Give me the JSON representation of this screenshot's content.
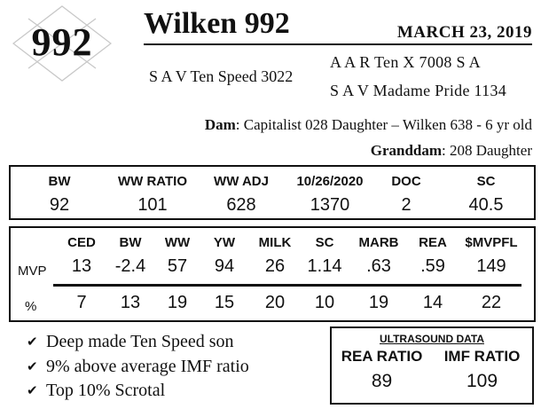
{
  "lot": {
    "number": "992",
    "emblem_icon": "diamond-x-emblem"
  },
  "header": {
    "name": "Wilken 992",
    "date": "MARCH  23, 2019",
    "sire": "S A V Ten Speed 3022",
    "sire_sire": "A A R Ten X 7008 S A",
    "sire_dam": "S A V Madame Pride 1134"
  },
  "pedigree": {
    "dam_label": "Dam",
    "dam_value": ": Capitalist 028 Daughter – Wilken 638 - 6 yr old",
    "granddam_label": "Granddam",
    "granddam_value": ": 208 Daughter"
  },
  "performance": {
    "headers": [
      "BW",
      "WW RATIO",
      "WW ADJ",
      "10/26/2020",
      "DOC",
      "SC"
    ],
    "values": [
      "92",
      "101",
      "628",
      "1370",
      "2",
      "40.5"
    ]
  },
  "epds": {
    "headers": [
      "CED",
      "BW",
      "WW",
      "YW",
      "MILK",
      "SC",
      "MARB",
      "REA",
      "$MVPFL"
    ],
    "mvp_label": "MVP",
    "mvp_values": [
      "13",
      "-2.4",
      "57",
      "94",
      "26",
      "1.14",
      ".63",
      ".59",
      "149"
    ],
    "pct_label": "%",
    "pct_values": [
      "7",
      "13",
      "19",
      "15",
      "20",
      "10",
      "19",
      "14",
      "22"
    ]
  },
  "highlights": {
    "icon": "checkmark-icon",
    "items": [
      {
        "text": "Deep made Ten Speed son"
      },
      {
        "text": "9% above average IMF ratio"
      },
      {
        "text": "Top 10% Scrotal"
      }
    ]
  },
  "ultrasound": {
    "title": "ULTRASOUND DATA",
    "rea_label": "REA RATIO",
    "rea_value": "89",
    "imf_label": "IMF RATIO",
    "imf_value": "109"
  }
}
